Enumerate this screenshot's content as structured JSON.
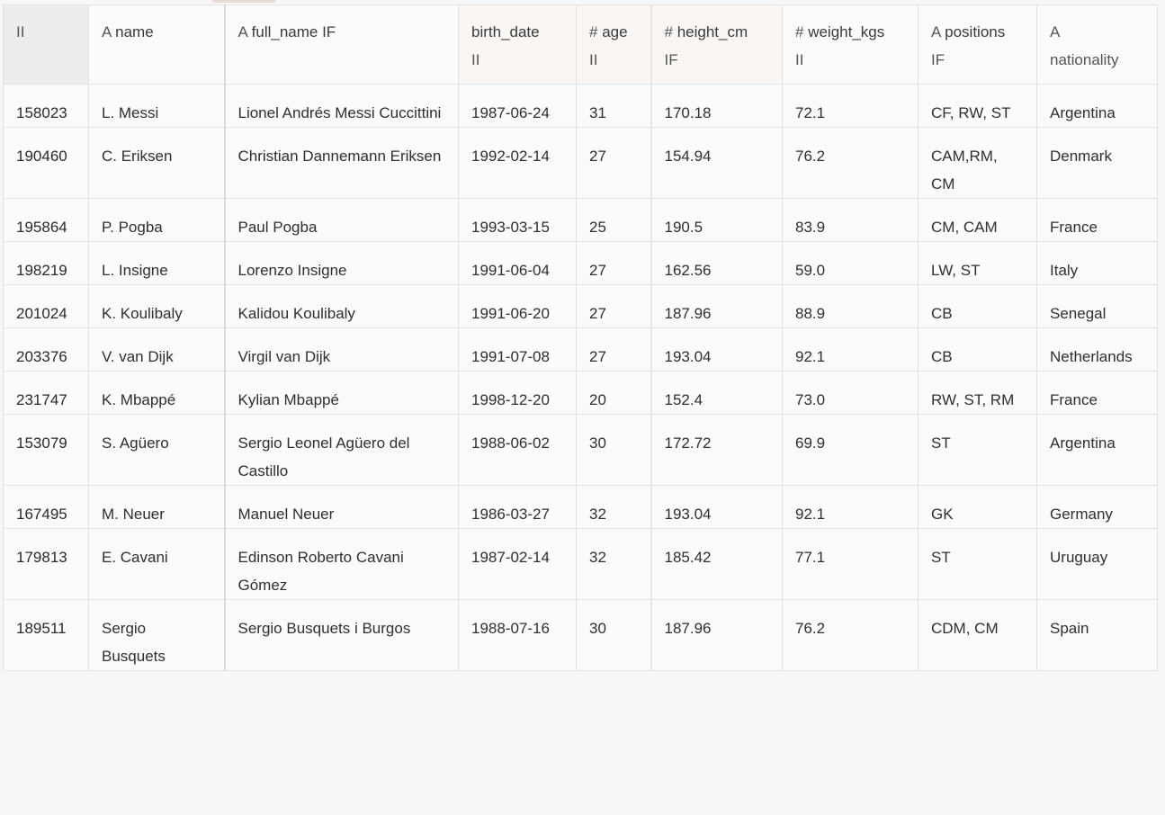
{
  "columns": [
    {
      "key": "id",
      "type_glyph": "II",
      "label": "",
      "sub": ""
    },
    {
      "key": "name",
      "type_glyph": "A",
      "label": "name",
      "sub": ""
    },
    {
      "key": "full_name",
      "type_glyph": "A",
      "label": "full_name IF",
      "sub": ""
    },
    {
      "key": "birth_date",
      "type_glyph": "",
      "label": "birth_date",
      "sub": "II"
    },
    {
      "key": "age",
      "type_glyph": "#",
      "label": "age",
      "sub": "II"
    },
    {
      "key": "height_cm",
      "type_glyph": "#",
      "label": "height_cm",
      "sub": "IF"
    },
    {
      "key": "weight_kgs",
      "type_glyph": "#",
      "label": "weight_kgs",
      "sub": "II"
    },
    {
      "key": "positions",
      "type_glyph": "A",
      "label": "positions",
      "sub": "IF"
    },
    {
      "key": "nationality",
      "type_glyph": "A",
      "label": "nationality",
      "sub": ""
    }
  ],
  "rows": [
    {
      "id": "158023",
      "name": "L. Messi",
      "full_name": "Lionel Andrés Messi Cuccittini",
      "birth_date": "1987-06-24",
      "age": "31",
      "height_cm": "170.18",
      "weight_kgs": "72.1",
      "positions": "CF, RW, ST",
      "nationality": "Argentina"
    },
    {
      "id": "190460",
      "name": "C. Eriksen",
      "full_name": "Christian Dannemann Eriksen",
      "birth_date": "1992-02-14",
      "age": "27",
      "height_cm": "154.94",
      "weight_kgs": "76.2",
      "positions": "CAM,RM, CM",
      "nationality": "Denmark"
    },
    {
      "id": "195864",
      "name": "P. Pogba",
      "full_name": "Paul Pogba",
      "birth_date": "1993-03-15",
      "age": "25",
      "height_cm": "190.5",
      "weight_kgs": "83.9",
      "positions": "CM, CAM",
      "nationality": "France"
    },
    {
      "id": "198219",
      "name": "L. Insigne",
      "full_name": "Lorenzo Insigne",
      "birth_date": "1991-06-04",
      "age": "27",
      "height_cm": "162.56",
      "weight_kgs": "59.0",
      "positions": "LW, ST",
      "nationality": "Italy"
    },
    {
      "id": "201024",
      "name": "K. Koulibaly",
      "full_name": "Kalidou Koulibaly",
      "birth_date": "1991-06-20",
      "age": "27",
      "height_cm": "187.96",
      "weight_kgs": "88.9",
      "positions": "CB",
      "nationality": "Senegal"
    },
    {
      "id": "203376",
      "name": "V. van Dijk",
      "full_name": "Virgil van Dijk",
      "birth_date": "1991-07-08",
      "age": "27",
      "height_cm": "193.04",
      "weight_kgs": "92.1",
      "positions": "CB",
      "nationality": "Netherlands"
    },
    {
      "id": "231747",
      "name": "K. Mbappé",
      "full_name": "Kylian Mbappé",
      "birth_date": "1998-12-20",
      "age": "20",
      "height_cm": "152.4",
      "weight_kgs": "73.0",
      "positions": "RW, ST, RM",
      "nationality": "France"
    },
    {
      "id": "153079",
      "name": "S. Agüero",
      "full_name": "Sergio Leonel Agüero del Castillo",
      "birth_date": "1988-06-02",
      "age": "30",
      "height_cm": "172.72",
      "weight_kgs": "69.9",
      "positions": "ST",
      "nationality": "Argentina"
    },
    {
      "id": "167495",
      "name": "M. Neuer",
      "full_name": "Manuel Neuer",
      "birth_date": "1986-03-27",
      "age": "32",
      "height_cm": "193.04",
      "weight_kgs": "92.1",
      "positions": "GK",
      "nationality": "Germany"
    },
    {
      "id": "179813",
      "name": "E. Cavani",
      "full_name": "Edinson Roberto Cavani Gómez",
      "birth_date": "1987-02-14",
      "age": "32",
      "height_cm": "185.42",
      "weight_kgs": "77.1",
      "positions": "ST",
      "nationality": "Uruguay"
    },
    {
      "id": "189511",
      "name": "Sergio Busquets",
      "full_name": "Sergio Busquets i Burgos",
      "birth_date": "1988-07-16",
      "age": "30",
      "height_cm": "187.96",
      "weight_kgs": "76.2",
      "positions": "CDM, CM",
      "nationality": "Spain"
    }
  ]
}
